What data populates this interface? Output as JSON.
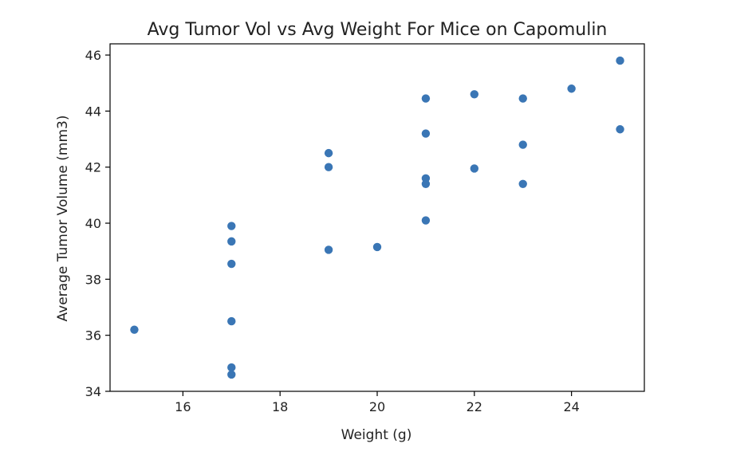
{
  "chart_data": {
    "type": "scatter",
    "title": "Avg Tumor Vol vs Avg Weight For Mice on Capomulin",
    "xlabel": "Weight (g)",
    "ylabel": "Average Tumor Volume (mm3)",
    "xlim": [
      14.5,
      25.5
    ],
    "ylim": [
      34,
      46.4
    ],
    "xticks": [
      16,
      18,
      20,
      22,
      24
    ],
    "yticks": [
      34,
      36,
      38,
      40,
      42,
      44,
      46
    ],
    "grid": false,
    "marker_color": "#3a76b5",
    "points": [
      {
        "x": 15,
        "y": 36.2
      },
      {
        "x": 17,
        "y": 34.6
      },
      {
        "x": 17,
        "y": 34.85
      },
      {
        "x": 17,
        "y": 36.5
      },
      {
        "x": 17,
        "y": 38.55
      },
      {
        "x": 17,
        "y": 39.35
      },
      {
        "x": 17,
        "y": 39.9
      },
      {
        "x": 19,
        "y": 39.05
      },
      {
        "x": 19,
        "y": 42.0
      },
      {
        "x": 19,
        "y": 42.5
      },
      {
        "x": 20,
        "y": 39.15
      },
      {
        "x": 21,
        "y": 40.1
      },
      {
        "x": 21,
        "y": 41.4
      },
      {
        "x": 21,
        "y": 41.6
      },
      {
        "x": 21,
        "y": 43.2
      },
      {
        "x": 21,
        "y": 44.45
      },
      {
        "x": 22,
        "y": 41.95
      },
      {
        "x": 22,
        "y": 44.6
      },
      {
        "x": 23,
        "y": 41.4
      },
      {
        "x": 23,
        "y": 42.8
      },
      {
        "x": 23,
        "y": 44.45
      },
      {
        "x": 24,
        "y": 44.8
      },
      {
        "x": 25,
        "y": 43.35
      },
      {
        "x": 25,
        "y": 45.8
      }
    ]
  }
}
